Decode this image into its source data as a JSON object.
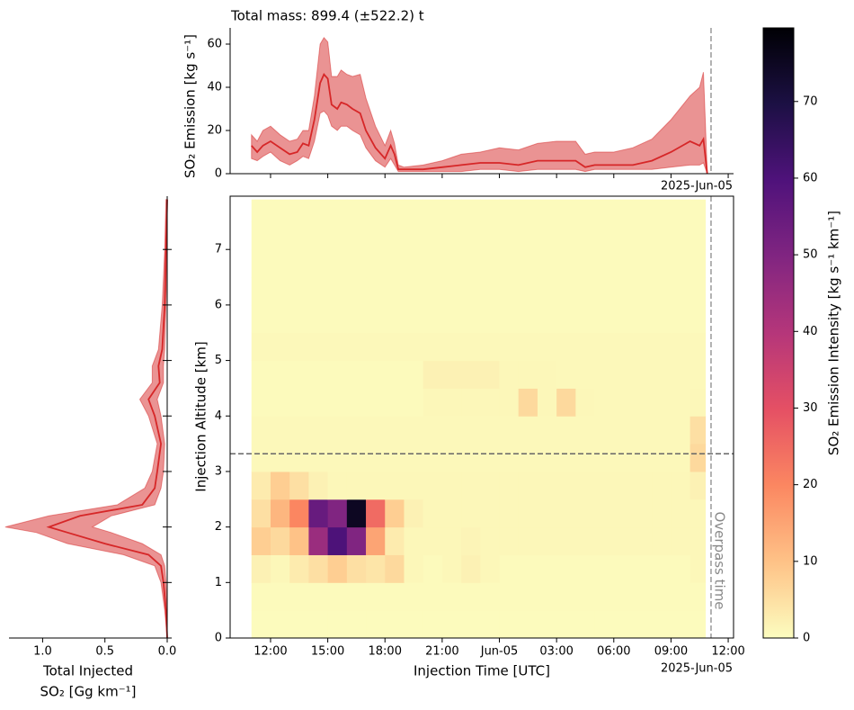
{
  "chart_data": [
    {
      "type": "line",
      "title": "Total mass: 899.4 (±522.2) t",
      "ylabel": "SO₂ Emission [kg s⁻¹]",
      "offset_label": "2025-Jun-05",
      "color": "#d62728",
      "band_color": "#d62728",
      "xlim": [
        9.88,
        36.28
      ],
      "xticks": [
        12,
        15,
        18,
        21,
        24,
        27,
        30,
        33,
        36
      ],
      "ylim": [
        0,
        67.5
      ],
      "yticks": [
        0,
        20,
        40,
        60
      ],
      "overpass": 35.1,
      "x": [
        11.0,
        11.3,
        11.6,
        12.0,
        12.5,
        13.0,
        13.4,
        13.7,
        14.0,
        14.3,
        14.6,
        14.8,
        15.0,
        15.2,
        15.5,
        15.7,
        16.0,
        16.3,
        16.7,
        17.0,
        17.5,
        18.0,
        18.3,
        18.5,
        18.7,
        19.0,
        20,
        21,
        22,
        23,
        24,
        25,
        26,
        27,
        28,
        28.5,
        29,
        30,
        31,
        32,
        33,
        34,
        34.5,
        34.7,
        34.9
      ],
      "values": [
        13,
        10,
        13,
        15,
        12,
        9,
        10,
        14,
        13,
        25,
        42,
        46,
        44,
        32,
        30,
        33,
        32,
        30,
        28,
        20,
        12,
        7,
        13,
        9,
        2,
        2,
        2,
        3,
        4,
        5,
        5,
        4,
        6,
        6,
        6,
        3,
        4,
        4,
        4,
        6,
        10,
        15,
        13,
        16,
        0
      ],
      "lower": [
        7,
        6,
        8,
        10,
        6,
        4,
        6,
        8,
        7,
        15,
        28,
        29,
        27,
        22,
        20,
        22,
        22,
        20,
        18,
        12,
        6,
        3,
        7,
        4,
        1,
        1,
        1,
        1,
        1,
        2,
        2,
        1,
        2,
        2,
        2,
        1,
        2,
        2,
        2,
        2,
        3,
        4,
        4,
        5,
        0
      ],
      "upper": [
        18,
        15,
        20,
        22,
        18,
        15,
        16,
        20,
        20,
        36,
        60,
        63,
        61,
        45,
        45,
        48,
        46,
        45,
        46,
        35,
        22,
        13,
        20,
        14,
        4,
        3,
        4,
        6,
        9,
        10,
        12,
        11,
        14,
        15,
        15,
        9,
        10,
        10,
        12,
        16,
        25,
        36,
        40,
        47,
        1
      ]
    },
    {
      "type": "profile",
      "xlabel": [
        "Total Injected",
        "SO₂ [Gg km⁻¹]"
      ],
      "color": "#d62728",
      "band_color": "#d62728",
      "xlim": [
        1.27,
        0
      ],
      "xticks": [
        {
          "value": 1.0,
          "label": "1.0"
        },
        {
          "value": 0.5,
          "label": "0.5"
        },
        {
          "value": 0.0,
          "label": "0.0"
        }
      ],
      "ylim": [
        0,
        7.96
      ],
      "yticks": [
        0,
        1,
        2,
        3,
        4,
        5,
        6,
        7
      ],
      "y": [
        0,
        0.5,
        1.0,
        1.3,
        1.5,
        1.7,
        1.9,
        2.0,
        2.2,
        2.4,
        2.7,
        3.0,
        3.5,
        4.0,
        4.3,
        4.6,
        4.9,
        5.2,
        6,
        7,
        7.9
      ],
      "values": [
        0,
        0.01,
        0.03,
        0.05,
        0.15,
        0.5,
        0.8,
        0.95,
        0.7,
        0.2,
        0.1,
        0.08,
        0.05,
        0.1,
        0.15,
        0.06,
        0.07,
        0.04,
        0.02,
        0.01,
        0
      ],
      "lower": [
        0,
        0,
        0.01,
        0.02,
        0.05,
        0.2,
        0.45,
        0.6,
        0.45,
        0.1,
        0.05,
        0.03,
        0.02,
        0.05,
        0.08,
        0.03,
        0.03,
        0.02,
        0.01,
        0,
        0
      ],
      "upper": [
        0,
        0.02,
        0.05,
        0.1,
        0.35,
        0.8,
        1.05,
        1.3,
        0.95,
        0.4,
        0.18,
        0.12,
        0.08,
        0.15,
        0.22,
        0.12,
        0.12,
        0.07,
        0.04,
        0.02,
        0.01
      ]
    },
    {
      "type": "heatmap",
      "xlabel": "Injection Time [UTC]",
      "ylabel": "Injection Altitude [km]",
      "offset_label": "2025-Jun-05",
      "overpass": 35.1,
      "overpass_label": "Overpass time",
      "hline": 3.32,
      "xlim": [
        9.88,
        36.28
      ],
      "xticks": [
        {
          "value": 12,
          "label": "12:00"
        },
        {
          "value": 15,
          "label": "15:00"
        },
        {
          "value": 18,
          "label": "18:00"
        },
        {
          "value": 21,
          "label": "21:00"
        },
        {
          "value": 24,
          "label": "Jun-05"
        },
        {
          "value": 27,
          "label": "03:00"
        },
        {
          "value": 30,
          "label": "06:00"
        },
        {
          "value": 33,
          "label": "09:00"
        },
        {
          "value": 36,
          "label": "12:00"
        }
      ],
      "ylim": [
        0,
        7.96
      ],
      "yticks": [
        0,
        1,
        2,
        3,
        4,
        5,
        6,
        7
      ],
      "xbins": [
        11,
        12,
        13,
        14,
        15,
        16,
        17,
        18,
        19,
        20,
        21,
        22,
        23,
        24,
        25,
        26,
        27,
        28,
        29,
        30,
        31,
        32,
        33,
        34,
        34.8
      ],
      "ybins": [
        0,
        0.5,
        1.0,
        1.5,
        2.0,
        2.5,
        3.0,
        3.5,
        4.0,
        4.5,
        5.0,
        5.5,
        6.0,
        6.5,
        7.0,
        7.5,
        7.9
      ],
      "z": [
        [
          0.3,
          0.3,
          0.3,
          0.3,
          0.3,
          0.3,
          0.3,
          0.3,
          0.3,
          0.3,
          0.3,
          0.3,
          0.3,
          0.3,
          0.3,
          0.3,
          0.3,
          0.3,
          0.3,
          0.3,
          0.3,
          0.3,
          0.3,
          0.3
        ],
        [
          0.5,
          0.5,
          0.5,
          0.5,
          0.5,
          0.5,
          0.5,
          0.5,
          0.5,
          0.5,
          0.5,
          0.5,
          0.5,
          0.5,
          0.5,
          0.5,
          0.5,
          0.5,
          0.5,
          0.5,
          0.5,
          0.5,
          0.5,
          0.5
        ],
        [
          2,
          1,
          3,
          5,
          8,
          5,
          4,
          6,
          1,
          0.5,
          1,
          2,
          1,
          0.5,
          0.5,
          0.5,
          0.5,
          0.5,
          0.5,
          0.5,
          0.5,
          0.5,
          0.5,
          1
        ],
        [
          8,
          6,
          10,
          45,
          60,
          50,
          15,
          3,
          1,
          1,
          1,
          1.5,
          1,
          1,
          1,
          1,
          1,
          1,
          1,
          1,
          1,
          1,
          1,
          1
        ],
        [
          5,
          12,
          20,
          55,
          50,
          75,
          25,
          8,
          2,
          1,
          1,
          1,
          1,
          1,
          1,
          1,
          1,
          1,
          1,
          1,
          1,
          1,
          1,
          1
        ],
        [
          3,
          8,
          5,
          2,
          1,
          1,
          1,
          1,
          1,
          1,
          1,
          1,
          1,
          1,
          1,
          1,
          1,
          1,
          1,
          1,
          1,
          1,
          1,
          2
        ],
        [
          0.8,
          0.8,
          0.8,
          0.8,
          0.8,
          0.8,
          0.8,
          0.8,
          0.8,
          0.8,
          0.8,
          0.8,
          0.8,
          0.8,
          0.8,
          0.8,
          0.8,
          0.8,
          0.8,
          0.8,
          0.8,
          0.8,
          0.8,
          6
        ],
        [
          0.8,
          0.8,
          0.8,
          0.8,
          0.8,
          0.8,
          0.8,
          0.8,
          0.8,
          0.8,
          0.8,
          0.8,
          0.8,
          0.8,
          0.8,
          0.8,
          0.8,
          0.8,
          0.8,
          0.8,
          0.8,
          0.8,
          0.8,
          5
        ],
        [
          0.5,
          0.5,
          0.5,
          0.5,
          0.5,
          0.5,
          0.5,
          0.5,
          0.5,
          1,
          1,
          1,
          1,
          1,
          6,
          1,
          6,
          1,
          0.8,
          0.8,
          0.8,
          0.8,
          0.8,
          1
        ],
        [
          0.5,
          0.5,
          0.5,
          0.5,
          0.5,
          0.5,
          0.5,
          0.5,
          0.5,
          2,
          2,
          2,
          2,
          1,
          1,
          1,
          0.8,
          0.8,
          0.8,
          0.8,
          0.8,
          0.8,
          0.8,
          0.8
        ],
        [
          0.8,
          0.8,
          0.8,
          0.8,
          0.8,
          0.8,
          0.8,
          0.8,
          0.8,
          0.8,
          0.8,
          0.8,
          0.8,
          0.8,
          0.8,
          0.8,
          0.8,
          0.8,
          0.8,
          0.8,
          0.8,
          0.8,
          0.8,
          0.8
        ],
        [
          0.5,
          0.5,
          0.5,
          0.5,
          0.5,
          0.5,
          0.5,
          0.5,
          0.5,
          0.5,
          0.5,
          0.5,
          0.5,
          0.5,
          0.5,
          0.5,
          0.5,
          0.5,
          0.5,
          0.5,
          0.5,
          0.5,
          0.5,
          0.5
        ],
        [
          0.5,
          0.5,
          0.5,
          0.5,
          0.5,
          0.5,
          0.5,
          0.5,
          0.5,
          0.5,
          0.5,
          0.5,
          0.5,
          0.5,
          0.5,
          0.5,
          0.5,
          0.5,
          0.5,
          0.5,
          0.5,
          0.5,
          0.5,
          0.5
        ],
        [
          0.5,
          0.5,
          0.5,
          0.5,
          0.5,
          0.5,
          0.5,
          0.5,
          0.5,
          0.5,
          0.5,
          0.5,
          0.5,
          0.5,
          0.5,
          0.5,
          0.5,
          0.5,
          0.5,
          0.5,
          0.5,
          0.5,
          0.5,
          0.5
        ],
        [
          0.5,
          0.5,
          0.5,
          0.5,
          0.5,
          0.5,
          0.5,
          0.5,
          0.5,
          0.5,
          0.5,
          0.5,
          0.5,
          0.5,
          0.5,
          0.5,
          0.5,
          0.5,
          0.5,
          0.5,
          0.5,
          0.5,
          0.5,
          0.5
        ],
        [
          0.5,
          0.5,
          0.5,
          0.5,
          0.5,
          0.5,
          0.5,
          0.5,
          0.5,
          0.5,
          0.5,
          0.5,
          0.5,
          0.5,
          0.5,
          0.5,
          0.5,
          0.5,
          0.5,
          0.5,
          0.5,
          0.5,
          0.5,
          0.5
        ]
      ],
      "colormap": [
        "#fcfdbf",
        "#fec287",
        "#fb8761",
        "#e55064",
        "#b5367a",
        "#812581",
        "#4f127b",
        "#1c1044",
        "#000004"
      ],
      "colorbar": {
        "label": "SO₂ Emission Intensity [kg s⁻¹ km⁻¹]",
        "lim": [
          0,
          79.6
        ],
        "ticks": [
          0,
          10,
          20,
          30,
          40,
          50,
          60,
          70
        ]
      }
    }
  ]
}
